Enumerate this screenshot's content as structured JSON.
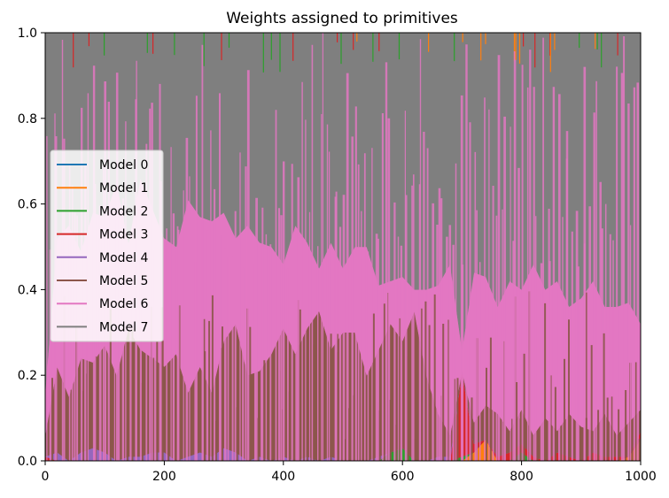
{
  "chart_data": {
    "type": "area",
    "title": "Weights assigned to primitives",
    "xlabel": "",
    "ylabel": "",
    "xlim": [
      0,
      1000
    ],
    "ylim": [
      0,
      1
    ],
    "x_ticks": [
      "0",
      "200",
      "400",
      "600",
      "800",
      "1000"
    ],
    "y_ticks": [
      "0.0",
      "0.2",
      "0.4",
      "0.6",
      "0.8",
      "1.0"
    ],
    "legend_position": "center-left",
    "grid": false,
    "x_step": 20,
    "series": [
      {
        "name": "Model 0",
        "color": "#1f77b4",
        "values": [
          0.0,
          0.0,
          0.0,
          0.0,
          0.0,
          0.0,
          0.0,
          0.0,
          0.0,
          0.0,
          0.0,
          0.0,
          0.0,
          0.0,
          0.0,
          0.0,
          0.0,
          0.0,
          0.0,
          0.0,
          0.0,
          0.0,
          0.0,
          0.0,
          0.0,
          0.0,
          0.0,
          0.0,
          0.0,
          0.0,
          0.0,
          0.0,
          0.0,
          0.0,
          0.0,
          0.0,
          0.0,
          0.0,
          0.0,
          0.0,
          0.0,
          0.0,
          0.0,
          0.0,
          0.0,
          0.0,
          0.0,
          0.0,
          0.0,
          0.0,
          0.0
        ]
      },
      {
        "name": "Model 1",
        "color": "#ff7f0e",
        "values": [
          0.0,
          0.0,
          0.0,
          0.0,
          0.0,
          0.0,
          0.0,
          0.0,
          0.0,
          0.0,
          0.0,
          0.0,
          0.0,
          0.0,
          0.0,
          0.0,
          0.0,
          0.0,
          0.0,
          0.0,
          0.0,
          0.0,
          0.0,
          0.0,
          0.0,
          0.0,
          0.0,
          0.0,
          0.0,
          0.0,
          0.0,
          0.0,
          0.0,
          0.0,
          0.0,
          0.0,
          0.02,
          0.05,
          0.0,
          0.0,
          0.0,
          0.0,
          0.0,
          0.0,
          0.0,
          0.0,
          0.0,
          0.0,
          0.0,
          0.01,
          0.05
        ]
      },
      {
        "name": "Model 2",
        "color": "#2ca02c",
        "values": [
          0.0,
          0.0,
          0.0,
          0.0,
          0.0,
          0.0,
          0.0,
          0.0,
          0.0,
          0.0,
          0.0,
          0.0,
          0.0,
          0.0,
          0.0,
          0.0,
          0.0,
          0.0,
          0.0,
          0.0,
          0.0,
          0.0,
          0.0,
          0.0,
          0.0,
          0.0,
          0.0,
          0.0,
          0.0,
          0.02,
          0.03,
          0.0,
          0.0,
          0.0,
          0.0,
          0.01,
          0.0,
          0.0,
          0.0,
          0.0,
          0.02,
          0.0,
          0.0,
          0.0,
          0.0,
          0.0,
          0.0,
          0.0,
          0.0,
          0.0,
          0.0
        ]
      },
      {
        "name": "Model 3",
        "color": "#d62728",
        "values": [
          0.01,
          0.0,
          0.0,
          0.0,
          0.0,
          0.0,
          0.0,
          0.0,
          0.0,
          0.0,
          0.0,
          0.0,
          0.0,
          0.0,
          0.0,
          0.0,
          0.0,
          0.0,
          0.0,
          0.0,
          0.0,
          0.0,
          0.0,
          0.0,
          0.0,
          0.0,
          0.0,
          0.0,
          0.0,
          0.0,
          0.0,
          0.0,
          0.0,
          0.0,
          0.0,
          0.2,
          0.02,
          0.0,
          0.01,
          0.02,
          0.02,
          0.01,
          0.0,
          0.02,
          0.01,
          0.0,
          0.02,
          0.01,
          0.01,
          0.0,
          0.02
        ]
      },
      {
        "name": "Model 4",
        "color": "#9467bd",
        "values": [
          0.0,
          0.02,
          0.0,
          0.02,
          0.03,
          0.02,
          0.0,
          0.01,
          0.01,
          0.02,
          0.02,
          0.0,
          0.01,
          0.02,
          0.01,
          0.03,
          0.02,
          0.0,
          0.01,
          0.0,
          0.01,
          0.0,
          0.01,
          0.0,
          0.01,
          0.0,
          0.0,
          0.0,
          0.01,
          0.0,
          0.0,
          0.0,
          0.0,
          0.01,
          0.01,
          0.0,
          0.0,
          0.0,
          0.0,
          0.0,
          0.0,
          0.0,
          0.0,
          0.0,
          0.0,
          0.0,
          0.0,
          0.0,
          0.0,
          0.0,
          0.0
        ]
      },
      {
        "name": "Model 5",
        "color": "#8c564b",
        "values": [
          0.05,
          0.2,
          0.15,
          0.22,
          0.2,
          0.25,
          0.2,
          0.3,
          0.25,
          0.22,
          0.2,
          0.25,
          0.15,
          0.2,
          0.15,
          0.25,
          0.3,
          0.2,
          0.2,
          0.25,
          0.3,
          0.25,
          0.3,
          0.35,
          0.25,
          0.3,
          0.3,
          0.2,
          0.25,
          0.3,
          0.25,
          0.35,
          0.2,
          0.1,
          0.05,
          0.0,
          0.05,
          0.08,
          0.1,
          0.05,
          0.08,
          0.05,
          0.1,
          0.05,
          0.1,
          0.08,
          0.05,
          0.1,
          0.05,
          0.08,
          0.05
        ]
      },
      {
        "name": "Model 6",
        "color": "#e377c2",
        "values": [
          0.1,
          0.3,
          0.4,
          0.25,
          0.35,
          0.3,
          0.45,
          0.2,
          0.4,
          0.35,
          0.3,
          0.25,
          0.45,
          0.35,
          0.4,
          0.3,
          0.2,
          0.35,
          0.3,
          0.25,
          0.15,
          0.3,
          0.2,
          0.1,
          0.25,
          0.15,
          0.2,
          0.3,
          0.15,
          0.1,
          0.15,
          0.05,
          0.2,
          0.3,
          0.4,
          0.05,
          0.35,
          0.3,
          0.25,
          0.35,
          0.28,
          0.4,
          0.3,
          0.35,
          0.25,
          0.3,
          0.35,
          0.25,
          0.3,
          0.28,
          0.2
        ]
      },
      {
        "name": "Model 7",
        "color": "#7f7f7f",
        "values": [
          0.84,
          0.48,
          0.45,
          0.51,
          0.42,
          0.43,
          0.35,
          0.49,
          0.34,
          0.41,
          0.48,
          0.5,
          0.39,
          0.43,
          0.44,
          0.42,
          0.48,
          0.45,
          0.49,
          0.5,
          0.54,
          0.45,
          0.49,
          0.55,
          0.49,
          0.55,
          0.5,
          0.5,
          0.59,
          0.58,
          0.57,
          0.6,
          0.6,
          0.59,
          0.54,
          0.74,
          0.56,
          0.57,
          0.64,
          0.58,
          0.6,
          0.54,
          0.6,
          0.58,
          0.64,
          0.62,
          0.58,
          0.64,
          0.64,
          0.63,
          0.68
        ]
      }
    ]
  }
}
